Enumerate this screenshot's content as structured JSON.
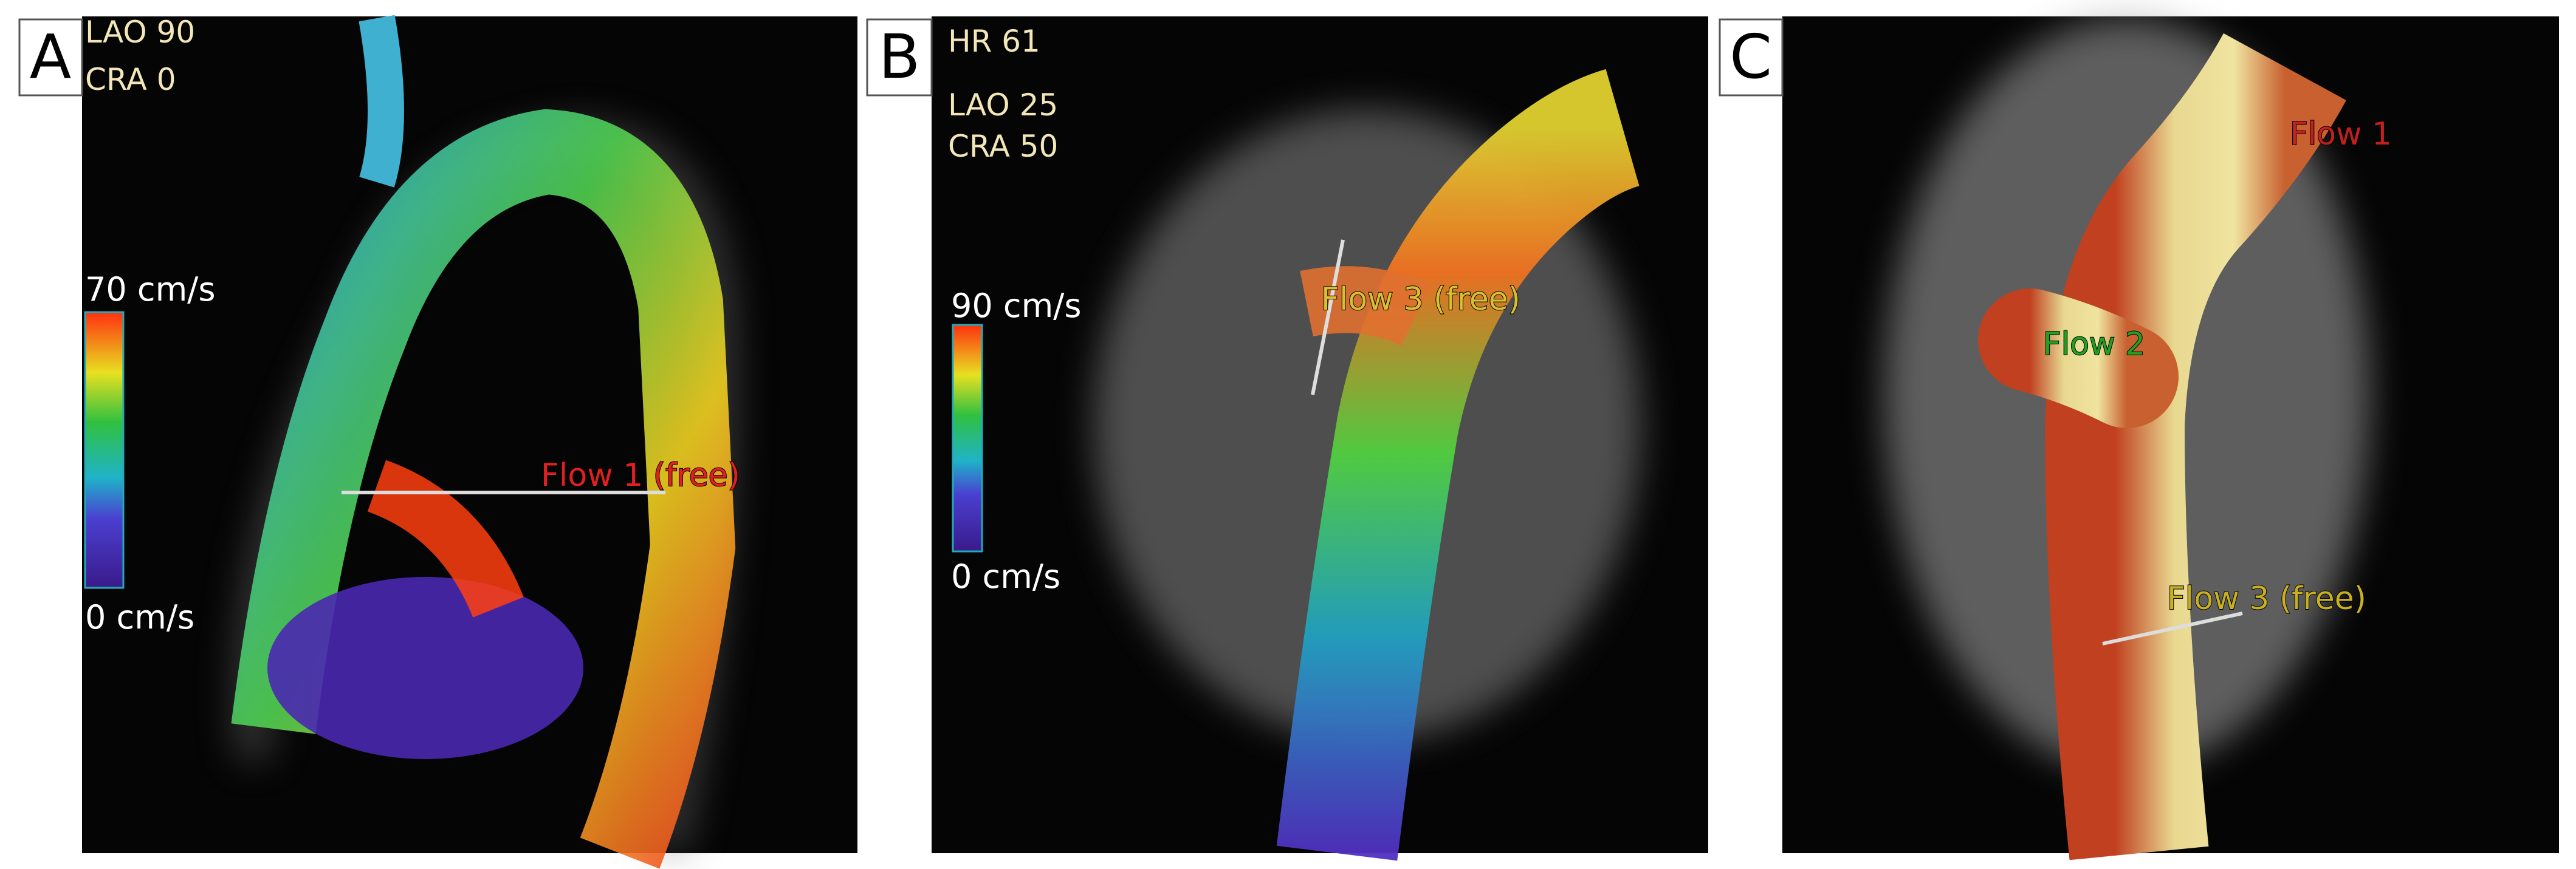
{
  "panels": [
    {
      "letter": "A",
      "view": [
        "LAO 90",
        "CRA 0"
      ],
      "colorbar": {
        "max": "70 cm/s",
        "min": "0 cm/s"
      },
      "flows": [
        "Flow 1 (free)"
      ]
    },
    {
      "letter": "B",
      "view": [
        "HR 61",
        "LAO 25",
        "CRA 50"
      ],
      "colorbar": {
        "max": "90 cm/s",
        "min": "0 cm/s"
      },
      "flows": [
        "Flow 3 (free)"
      ]
    },
    {
      "letter": "C",
      "flows": [
        "Flow 1",
        "Flow 2",
        "Flow 3 (free)"
      ]
    }
  ]
}
